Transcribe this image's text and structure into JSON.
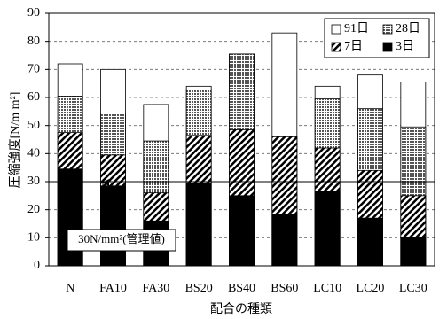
{
  "chart_data": {
    "type": "bar",
    "overlap": true,
    "x_label": "配合の種類",
    "y_label": "圧縮強度[N/m m²]",
    "categories": [
      "N",
      "FA10",
      "FA30",
      "BS20",
      "BS40",
      "BS60",
      "LC10",
      "LC20",
      "LC30"
    ],
    "series": [
      {
        "name": "91日",
        "color": "#ffffff",
        "pattern": "solid",
        "values": [
          72,
          70,
          57.5,
          64,
          75.5,
          83,
          64,
          68,
          65.5
        ]
      },
      {
        "name": "28日",
        "color": "#8c8c8c",
        "pattern": "dots",
        "values": [
          60.5,
          54.5,
          44.5,
          63,
          75.5,
          46,
          59.5,
          56,
          49.5
        ]
      },
      {
        "name": "7日",
        "color": "#000000",
        "pattern": "hatch",
        "values": [
          47.5,
          39.5,
          26,
          46.5,
          48.5,
          46,
          42,
          34,
          25
        ]
      },
      {
        "name": "3日",
        "color": "#000000",
        "pattern": "solid",
        "values": [
          34.5,
          28.5,
          16,
          29.5,
          25,
          18.5,
          26.5,
          17,
          10
        ]
      }
    ],
    "ylim": [
      0,
      90
    ],
    "yticks": [
      0,
      10,
      20,
      30,
      40,
      50,
      60,
      70,
      80,
      90
    ],
    "grid": true,
    "reference_line": {
      "value": 30,
      "label": "30N/mm²(管理値)"
    },
    "legend": "top-right"
  }
}
